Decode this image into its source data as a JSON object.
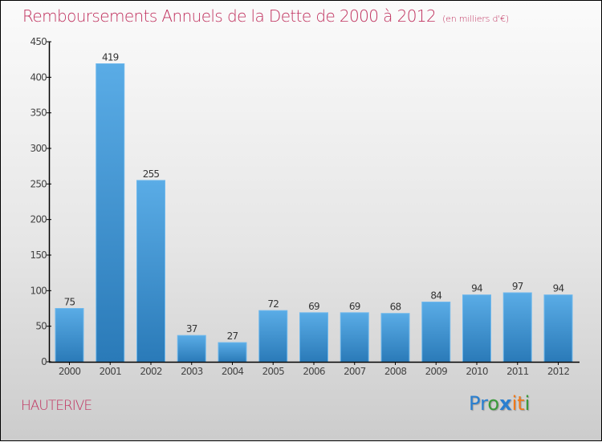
{
  "chart_data": {
    "type": "bar",
    "title": "Remboursements Annuels de la Dette de 2000 à 2012",
    "unit_note": "(en milliers d'€)",
    "xlabel": "",
    "ylabel": "",
    "categories": [
      "2000",
      "2001",
      "2002",
      "2003",
      "2004",
      "2005",
      "2006",
      "2007",
      "2008",
      "2009",
      "2010",
      "2011",
      "2012"
    ],
    "values": [
      75,
      419,
      255,
      37,
      27,
      72,
      69,
      69,
      68,
      84,
      94,
      97,
      94
    ],
    "ylim": [
      0,
      450
    ],
    "yticks": [
      0,
      50,
      100,
      150,
      200,
      250,
      300,
      350,
      400,
      450
    ],
    "grid": false,
    "legend": "none",
    "bar_color_top": "#5aacE6",
    "bar_color_bottom": "#2a7ab8"
  },
  "footer": {
    "town": "HAUTERIVE",
    "logo_letters": [
      {
        "ch": "P",
        "color": "#2a7fd0"
      },
      {
        "ch": "r",
        "color": "#2a7fd0"
      },
      {
        "ch": "o",
        "color": "#3a9a3a"
      },
      {
        "ch": "x",
        "color": "#2a7fd0"
      },
      {
        "ch": "i",
        "color": "#f07a1a"
      },
      {
        "ch": "t",
        "color": "#f07a1a"
      },
      {
        "ch": "i",
        "color": "#3a9a3a"
      }
    ]
  },
  "colors": {
    "title": "#c0315e",
    "axis": "#000000"
  }
}
